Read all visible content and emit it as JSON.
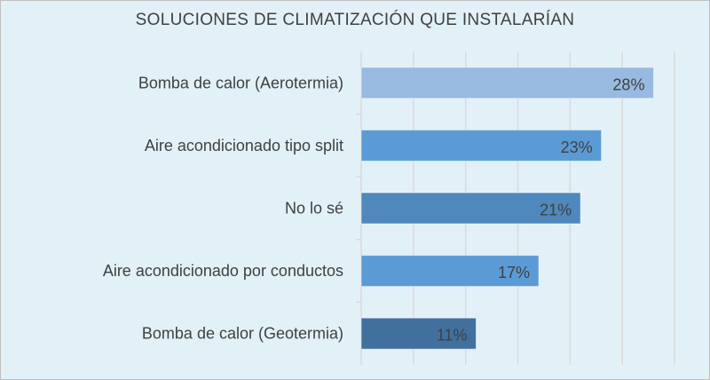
{
  "chart_data": {
    "type": "bar",
    "orientation": "horizontal",
    "title": "SOLUCIONES DE CLIMATIZACIÓN QUE INSTALARÍAN",
    "categories": [
      "Bomba de calor (Aerotermia)",
      "Aire acondicionado tipo split",
      "No lo sé",
      "Aire acondicionado por conductos",
      "Bomba de calor (Geotermia)"
    ],
    "values": [
      28,
      23,
      21,
      17,
      11
    ],
    "data_labels": [
      "28%",
      "23%",
      "21%",
      "17%",
      "11%"
    ],
    "bar_colors": [
      "#98bae0",
      "#5b9bd5",
      "#4f88bc",
      "#5b9bd5",
      "#41709e"
    ],
    "xlim": [
      0,
      30
    ],
    "x_unit": "%",
    "grid": true,
    "x_tick_labels_shown": false,
    "background_color": "#e2f1f8"
  }
}
